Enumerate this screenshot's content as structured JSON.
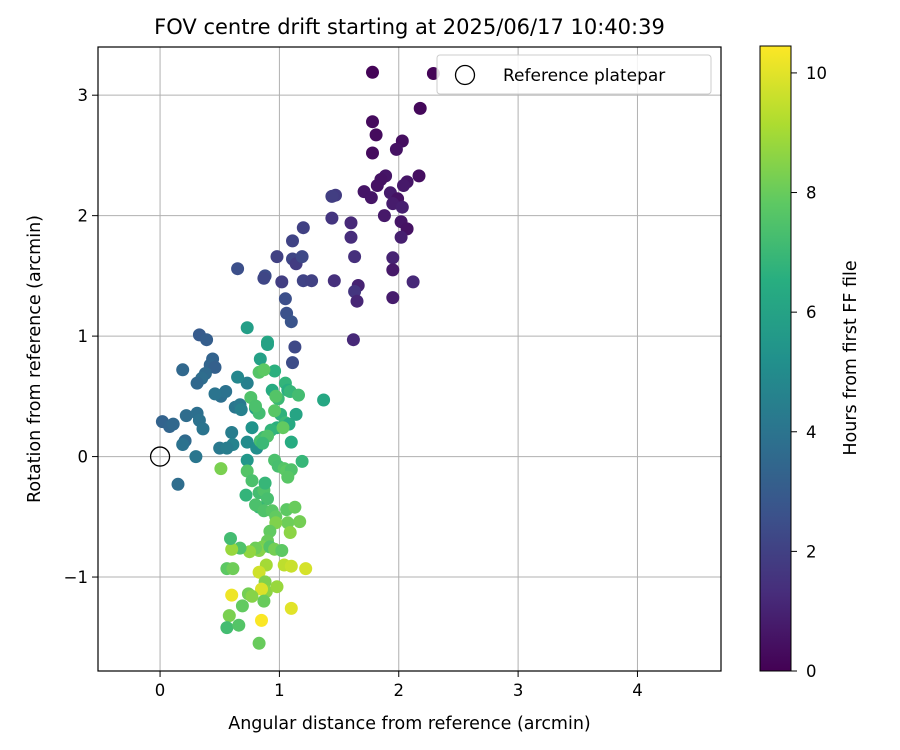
{
  "chart_data": {
    "type": "scatter",
    "title": "FOV centre drift starting at 2025/06/17 10:40:39",
    "xlabel": "Angular distance from reference (arcmin)",
    "ylabel": "Rotation from reference (arcmin)",
    "xlim": [
      -0.52,
      4.7
    ],
    "ylim": [
      -1.78,
      3.4
    ],
    "xticks": [
      "0",
      "1",
      "2",
      "3",
      "4"
    ],
    "yticks": [
      "−1",
      "0",
      "1",
      "2",
      "3"
    ],
    "grid": true,
    "legend": {
      "position": "top-right",
      "label": "Reference platepar"
    },
    "reference_point": {
      "x": 0,
      "y": 0
    },
    "colorbar": {
      "label": "Hours from first FF file",
      "colormap": "viridis",
      "range": [
        0,
        10.45
      ],
      "ticks": [
        "0",
        "2",
        "4",
        "6",
        "8",
        "10"
      ]
    },
    "points": [
      [
        1.78,
        3.19,
        0.1
      ],
      [
        2.29,
        3.18,
        0.1
      ],
      [
        2.18,
        2.89,
        0.2
      ],
      [
        1.78,
        2.78,
        0.3
      ],
      [
        1.81,
        2.67,
        0.3
      ],
      [
        2.03,
        2.62,
        0.4
      ],
      [
        1.98,
        2.55,
        0.5
      ],
      [
        1.78,
        2.52,
        0.3
      ],
      [
        1.89,
        2.33,
        0.6
      ],
      [
        2.17,
        2.33,
        0.4
      ],
      [
        1.85,
        2.3,
        0.5
      ],
      [
        2.07,
        2.28,
        0.6
      ],
      [
        2.04,
        2.25,
        0.7
      ],
      [
        1.82,
        2.25,
        0.5
      ],
      [
        1.93,
        2.19,
        0.8
      ],
      [
        1.71,
        2.2,
        0.6
      ],
      [
        1.99,
        2.14,
        0.5
      ],
      [
        1.77,
        2.15,
        0.6
      ],
      [
        1.95,
        2.1,
        0.8
      ],
      [
        2.03,
        2.07,
        0.9
      ],
      [
        1.88,
        2.0,
        0.7
      ],
      [
        2.02,
        1.95,
        0.6
      ],
      [
        2.07,
        1.89,
        0.5
      ],
      [
        2.02,
        1.82,
        0.9
      ],
      [
        1.95,
        1.65,
        1.0
      ],
      [
        1.95,
        1.55,
        0.7
      ],
      [
        2.12,
        1.45,
        1.2
      ],
      [
        1.95,
        1.32,
        0.8
      ],
      [
        1.47,
        2.17,
        1.8
      ],
      [
        1.44,
        2.16,
        1.9
      ],
      [
        1.44,
        1.98,
        1.6
      ],
      [
        1.6,
        1.94,
        1.2
      ],
      [
        1.6,
        1.82,
        1.3
      ],
      [
        1.63,
        1.66,
        1.4
      ],
      [
        1.66,
        1.42,
        1.0
      ],
      [
        1.63,
        1.37,
        1.6
      ],
      [
        1.65,
        1.29,
        1.1
      ],
      [
        1.62,
        0.97,
        1.2
      ],
      [
        1.46,
        1.46,
        1.4
      ],
      [
        1.2,
        1.9,
        2.0
      ],
      [
        1.11,
        1.79,
        2.1
      ],
      [
        1.11,
        1.64,
        2.2
      ],
      [
        1.14,
        1.6,
        1.8
      ],
      [
        1.19,
        1.66,
        2.3
      ],
      [
        1.2,
        1.46,
        2.1
      ],
      [
        1.27,
        1.46,
        2.0
      ],
      [
        0.98,
        1.66,
        2.0
      ],
      [
        0.88,
        1.5,
        2.4
      ],
      [
        0.87,
        1.48,
        2.2
      ],
      [
        1.02,
        1.45,
        1.9
      ],
      [
        1.05,
        1.31,
        2.5
      ],
      [
        1.06,
        1.19,
        2.6
      ],
      [
        1.1,
        1.12,
        2.7
      ],
      [
        1.13,
        0.91,
        2.3
      ],
      [
        1.11,
        0.78,
        2.4
      ],
      [
        0.65,
        1.56,
        2.5
      ],
      [
        0.33,
        1.01,
        3.0
      ],
      [
        0.39,
        0.97,
        3.1
      ],
      [
        0.44,
        0.81,
        3.3
      ],
      [
        0.42,
        0.76,
        3.4
      ],
      [
        0.46,
        0.74,
        3.2
      ],
      [
        0.19,
        0.72,
        3.5
      ],
      [
        0.38,
        0.69,
        3.6
      ],
      [
        0.35,
        0.65,
        3.7
      ],
      [
        0.31,
        0.61,
        3.5
      ],
      [
        0.51,
        0.5,
        3.8
      ],
      [
        0.55,
        0.54,
        3.9
      ],
      [
        0.46,
        0.52,
        4.0
      ],
      [
        0.63,
        0.41,
        4.1
      ],
      [
        0.67,
        0.43,
        4.2
      ],
      [
        0.73,
        0.61,
        4.5
      ],
      [
        0.65,
        0.66,
        4.8
      ],
      [
        0.02,
        0.29,
        3.3
      ],
      [
        0.08,
        0.25,
        3.4
      ],
      [
        0.11,
        0.27,
        3.5
      ],
      [
        0.22,
        0.34,
        3.7
      ],
      [
        0.31,
        0.36,
        3.8
      ],
      [
        0.33,
        0.3,
        3.9
      ],
      [
        0.36,
        0.23,
        4.0
      ],
      [
        0.21,
        0.13,
        3.6
      ],
      [
        0.19,
        0.1,
        3.9
      ],
      [
        0.3,
        0.0,
        4.1
      ],
      [
        0.15,
        -0.23,
        3.7
      ],
      [
        0.5,
        0.07,
        4.2
      ],
      [
        0.6,
        0.2,
        4.4
      ],
      [
        0.61,
        0.1,
        4.6
      ],
      [
        0.68,
        0.39,
        4.5
      ],
      [
        0.73,
        0.12,
        5.0
      ],
      [
        0.77,
        0.24,
        5.3
      ],
      [
        0.81,
        0.07,
        5.1
      ],
      [
        0.73,
        -0.03,
        5.5
      ],
      [
        0.8,
        0.4,
        5.7
      ],
      [
        0.84,
        0.81,
        5.9
      ],
      [
        0.9,
        0.95,
        6.2
      ],
      [
        0.9,
        0.93,
        6.0
      ],
      [
        0.73,
        1.07,
        5.8
      ],
      [
        1.37,
        0.47,
        6.2
      ],
      [
        0.94,
        0.55,
        6.4
      ],
      [
        0.96,
        0.71,
        6.6
      ],
      [
        1.05,
        0.61,
        6.8
      ],
      [
        1.07,
        0.55,
        6.5
      ],
      [
        1.09,
        0.54,
        6.9
      ],
      [
        1.01,
        0.35,
        6.7
      ],
      [
        1.05,
        0.28,
        7.0
      ],
      [
        1.08,
        0.27,
        6.3
      ],
      [
        1.16,
        0.51,
        7.2
      ],
      [
        1.14,
        0.35,
        6.1
      ],
      [
        1.1,
        0.12,
        6.4
      ],
      [
        0.98,
        0.24,
        6.6
      ],
      [
        0.93,
        0.22,
        6.8
      ],
      [
        1.19,
        -0.04,
        6.9
      ],
      [
        0.87,
        0.16,
        7.1
      ],
      [
        0.84,
        0.13,
        7.3
      ],
      [
        0.99,
        0.48,
        7.0
      ],
      [
        0.83,
        0.36,
        7.2
      ],
      [
        0.76,
        0.49,
        7.5
      ],
      [
        0.8,
        0.42,
        7.4
      ],
      [
        0.83,
        0.7,
        7.6
      ],
      [
        0.87,
        0.72,
        7.8
      ],
      [
        0.97,
        0.5,
        7.6
      ],
      [
        0.96,
        0.38,
        7.7
      ],
      [
        1.03,
        0.24,
        7.9
      ],
      [
        0.9,
        0.17,
        7.5
      ],
      [
        0.96,
        -0.03,
        7.4
      ],
      [
        0.99,
        -0.08,
        7.3
      ],
      [
        1.04,
        -0.1,
        7.6
      ],
      [
        1.06,
        -0.12,
        7.8
      ],
      [
        1.1,
        -0.11,
        7.5
      ],
      [
        1.07,
        -0.17,
        7.7
      ],
      [
        0.73,
        -0.12,
        7.6
      ],
      [
        0.77,
        -0.2,
        7.4
      ],
      [
        0.83,
        -0.3,
        7.2
      ],
      [
        0.87,
        -0.28,
        7.5
      ],
      [
        0.88,
        -0.22,
        6.9
      ],
      [
        0.9,
        -0.35,
        7.3
      ],
      [
        0.83,
        -0.42,
        7.0
      ],
      [
        0.72,
        -0.32,
        6.8
      ],
      [
        0.8,
        -0.4,
        7.4
      ],
      [
        0.87,
        -0.45,
        7.5
      ],
      [
        0.94,
        -0.45,
        7.7
      ],
      [
        0.97,
        -0.5,
        7.9
      ],
      [
        1.06,
        -0.44,
        7.8
      ],
      [
        1.13,
        -0.42,
        8.0
      ],
      [
        1.17,
        -0.54,
        8.2
      ],
      [
        1.07,
        -0.55,
        8.1
      ],
      [
        0.97,
        -0.55,
        8.4
      ],
      [
        1.09,
        -0.63,
        8.6
      ],
      [
        0.92,
        -0.62,
        7.9
      ],
      [
        0.9,
        -0.7,
        8.0
      ],
      [
        0.86,
        -0.75,
        8.3
      ],
      [
        0.83,
        -0.78,
        8.5
      ],
      [
        0.8,
        -0.76,
        8.1
      ],
      [
        0.75,
        -0.79,
        8.7
      ],
      [
        0.67,
        -0.76,
        7.5
      ],
      [
        0.6,
        -0.77,
        8.8
      ],
      [
        0.59,
        -0.68,
        7.2
      ],
      [
        0.92,
        -0.75,
        7.6
      ],
      [
        0.96,
        -0.77,
        8.2
      ],
      [
        1.02,
        -0.78,
        7.8
      ],
      [
        1.04,
        -0.9,
        9.4
      ],
      [
        1.1,
        -0.91,
        9.6
      ],
      [
        1.22,
        -0.93,
        9.8
      ],
      [
        0.89,
        -0.9,
        9.0
      ],
      [
        0.83,
        -0.96,
        9.7
      ],
      [
        0.88,
        -1.04,
        8.4
      ],
      [
        0.89,
        -1.12,
        8.6
      ],
      [
        0.85,
        -1.1,
        9.9
      ],
      [
        0.98,
        -1.08,
        8.8
      ],
      [
        1.1,
        -1.26,
        10.0
      ],
      [
        0.87,
        -1.2,
        8.0
      ],
      [
        0.74,
        -1.14,
        8.2
      ],
      [
        0.77,
        -1.16,
        8.5
      ],
      [
        0.6,
        -1.15,
        10.2
      ],
      [
        0.58,
        -1.32,
        8.3
      ],
      [
        0.69,
        -1.24,
        7.9
      ],
      [
        0.56,
        -1.42,
        7.2
      ],
      [
        0.66,
        -1.4,
        7.6
      ],
      [
        0.85,
        -1.36,
        10.4
      ],
      [
        0.83,
        -1.55,
        8.0
      ],
      [
        0.56,
        -0.93,
        7.8
      ],
      [
        0.61,
        -0.93,
        8.1
      ],
      [
        0.51,
        -0.1,
        8.3
      ],
      [
        0.56,
        0.07,
        4.4
      ],
      [
        0.86,
        0.11,
        7.0
      ]
    ]
  }
}
